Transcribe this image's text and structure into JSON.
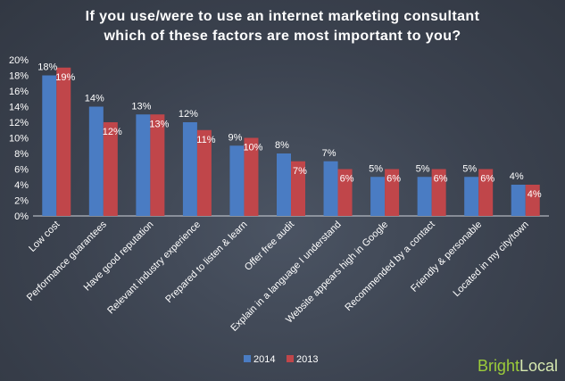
{
  "chart_data": {
    "type": "bar",
    "title_line1": "If you use/were to use an internet marketing consultant",
    "title_line2": "which of these factors are most important to you?",
    "categories": [
      "Low cost",
      "Performance guarantees",
      "Have good reputation",
      "Relevant industry experience",
      "Prepared to listen & learn",
      "Offer free audit",
      "Explain in a language I understand",
      "Website appears high in Google",
      "Recommended by a contact",
      "Friendly & personable",
      "Located in my city/town"
    ],
    "series": [
      {
        "name": "2014",
        "color": "#4a7cc3",
        "values": [
          18,
          14,
          13,
          12,
          9,
          8,
          7,
          5,
          5,
          5,
          4
        ]
      },
      {
        "name": "2013",
        "color": "#c0464a",
        "values": [
          19,
          12,
          13,
          11,
          10,
          7,
          6,
          6,
          6,
          6,
          4
        ]
      }
    ],
    "ylim": [
      0,
      20
    ],
    "yticks": [
      0,
      2,
      4,
      6,
      8,
      10,
      12,
      14,
      16,
      18,
      20
    ],
    "ytick_suffix": "%",
    "grid": false,
    "legend_position": "bottom-center"
  },
  "brand": {
    "part1": "Bright",
    "part2": "Local"
  }
}
